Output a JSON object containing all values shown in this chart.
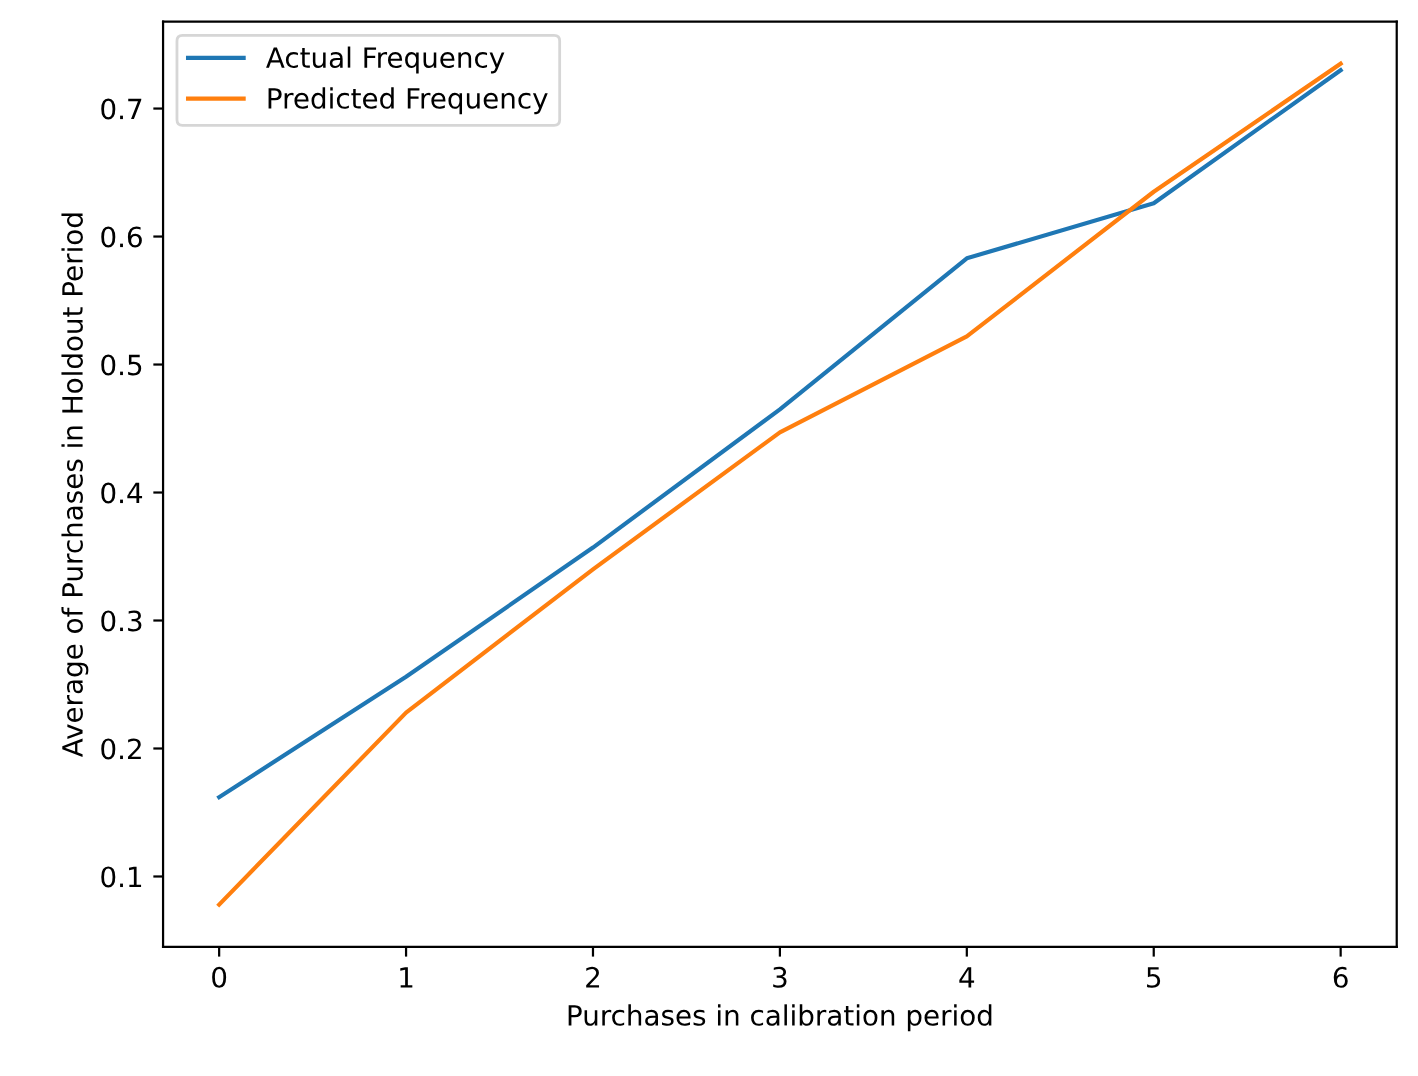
{
  "chart_data": {
    "type": "line",
    "xlabel": "Purchases in calibration period",
    "ylabel": "Average of Purchases in Holdout Period",
    "x": [
      0,
      1,
      2,
      3,
      4,
      5,
      6
    ],
    "series": [
      {
        "name": "Actual Frequency",
        "color": "#1f77b4",
        "values": [
          0.162,
          0.256,
          0.357,
          0.465,
          0.583,
          0.626,
          0.73
        ]
      },
      {
        "name": "Predicted Frequency",
        "color": "#ff7f0e",
        "values": [
          0.078,
          0.228,
          0.34,
          0.447,
          0.522,
          0.635,
          0.735
        ]
      }
    ],
    "xlim": [
      -0.3,
      6.3
    ],
    "ylim": [
      0.045,
      0.768
    ],
    "xticks": [
      0,
      1,
      2,
      3,
      4,
      5,
      6
    ],
    "yticks": [
      0.1,
      0.2,
      0.3,
      0.4,
      0.5,
      0.6,
      0.7
    ],
    "legend": "top left",
    "grid": false,
    "marker": "none",
    "line_style": "solid"
  }
}
